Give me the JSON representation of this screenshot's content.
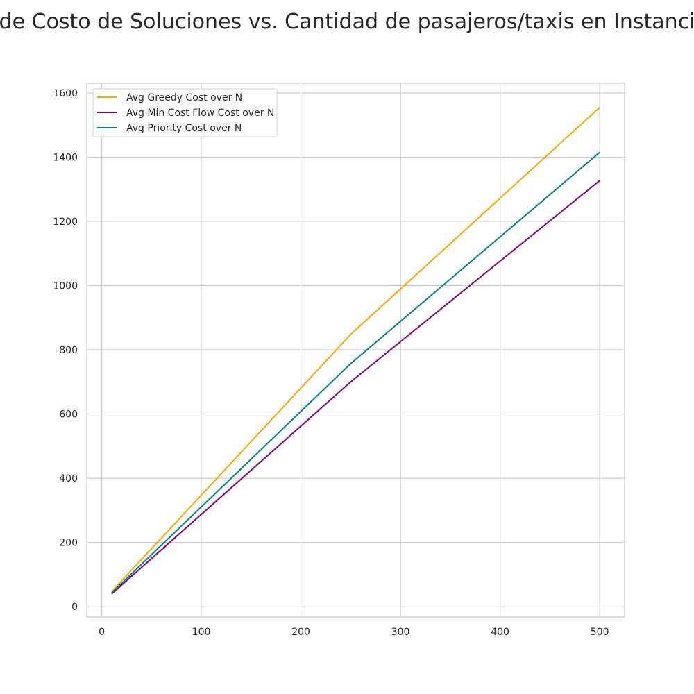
{
  "chart_data": {
    "type": "line",
    "title": "de Costo de Soluciones vs. Cantidad de pasajeros/taxis en Instanci",
    "xlabel": "",
    "ylabel": "",
    "xlim": [
      -15,
      525
    ],
    "ylim": [
      -32,
      1630
    ],
    "xticks": [
      0,
      100,
      200,
      300,
      400,
      500
    ],
    "yticks": [
      0,
      200,
      400,
      600,
      800,
      1000,
      1200,
      1400,
      1600
    ],
    "grid": true,
    "legend_position": "top-left",
    "x": [
      10,
      250,
      500
    ],
    "series": [
      {
        "name": "Avg Greedy Cost over N",
        "color": "#ffa500",
        "values": [
          47,
          848,
          1555
        ]
      },
      {
        "name": "Avg Min Cost Flow Cost over N",
        "color": "#800080",
        "values": [
          40,
          700,
          1327
        ]
      },
      {
        "name": "Avg Priority Cost over N",
        "color": "#008080",
        "values": [
          43,
          757,
          1415
        ]
      }
    ]
  }
}
